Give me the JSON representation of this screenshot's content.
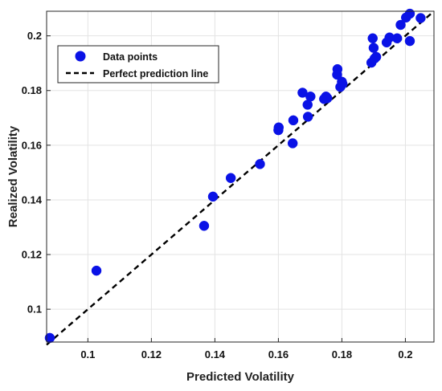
{
  "chart_data": {
    "type": "scatter",
    "xlabel": "Predicted Volatility",
    "ylabel": "Realized Volatility",
    "xlim": [
      0.087,
      0.209
    ],
    "ylim": [
      0.088,
      0.209
    ],
    "x_ticks": [
      "0.1",
      "0.12",
      "0.14",
      "0.16",
      "0.18",
      "0.2"
    ],
    "y_ticks": [
      "0.1",
      "0.12",
      "0.14",
      "0.16",
      "0.18",
      "0.2"
    ],
    "grid": true,
    "legend_position": "top-left",
    "series": [
      {
        "name": "Data points",
        "marker": "circle",
        "color": "#0a12e6",
        "points": [
          [
            0.088,
            0.0895
          ],
          [
            0.1027,
            0.1141
          ],
          [
            0.1366,
            0.1305
          ],
          [
            0.1394,
            0.1412
          ],
          [
            0.145,
            0.148
          ],
          [
            0.1542,
            0.1531
          ],
          [
            0.16,
            0.1655
          ],
          [
            0.1601,
            0.1665
          ],
          [
            0.1645,
            0.1607
          ],
          [
            0.1647,
            0.1691
          ],
          [
            0.1676,
            0.1792
          ],
          [
            0.1692,
            0.1748
          ],
          [
            0.1693,
            0.1704
          ],
          [
            0.1701,
            0.1778
          ],
          [
            0.1744,
            0.1769
          ],
          [
            0.175,
            0.1778
          ],
          [
            0.1754,
            0.1772
          ],
          [
            0.1785,
            0.1858
          ],
          [
            0.1786,
            0.1878
          ],
          [
            0.1795,
            0.1813
          ],
          [
            0.18,
            0.1832
          ],
          [
            0.1802,
            0.1824
          ],
          [
            0.1893,
            0.1902
          ],
          [
            0.1897,
            0.1991
          ],
          [
            0.19,
            0.1956
          ],
          [
            0.1903,
            0.1917
          ],
          [
            0.1908,
            0.1923
          ],
          [
            0.1941,
            0.1976
          ],
          [
            0.195,
            0.1994
          ],
          [
            0.1974,
            0.1991
          ],
          [
            0.1985,
            0.204
          ],
          [
            0.2002,
            0.2067
          ],
          [
            0.2014,
            0.2081
          ],
          [
            0.2014,
            0.1981
          ],
          [
            0.2048,
            0.2065
          ]
        ]
      },
      {
        "name": "Perfect prediction line",
        "type": "line",
        "style": "dashed",
        "color": "#000000",
        "x": [
          0.087,
          0.209
        ],
        "y": [
          0.087,
          0.209
        ]
      }
    ]
  }
}
